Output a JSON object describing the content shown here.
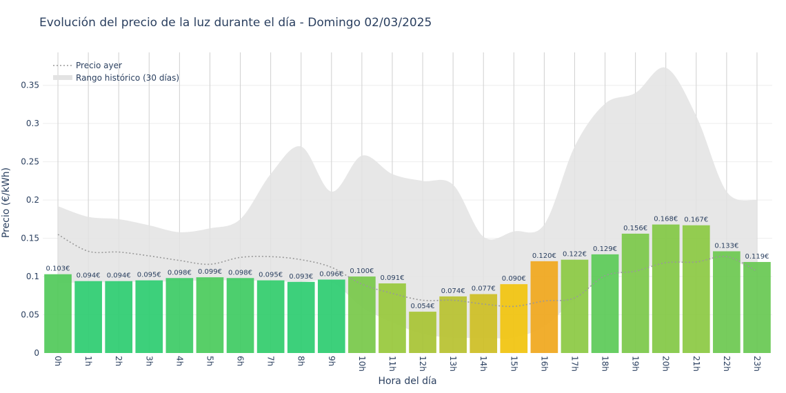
{
  "chart_data": {
    "type": "bar",
    "title": "Evolución del precio de la luz durante el día - Domingo 02/03/2025",
    "xlabel": "Hora del día",
    "ylabel": "Precio (€/kWh)",
    "ylim": [
      0,
      0.393
    ],
    "yticks": [
      0,
      0.05,
      0.1,
      0.15,
      0.2,
      0.25,
      0.3,
      0.35
    ],
    "ytick_labels": [
      "0",
      "0.05",
      "0.1",
      "0.15",
      "0.2",
      "0.25",
      "0.3",
      "0.35"
    ],
    "grid": true,
    "legend_position": "top-left",
    "categories": [
      "0h",
      "1h",
      "2h",
      "3h",
      "4h",
      "5h",
      "6h",
      "7h",
      "8h",
      "9h",
      "10h",
      "11h",
      "12h",
      "13h",
      "14h",
      "15h",
      "16h",
      "17h",
      "18h",
      "19h",
      "20h",
      "21h",
      "22h",
      "23h"
    ],
    "values": [
      0.103,
      0.094,
      0.094,
      0.095,
      0.098,
      0.099,
      0.098,
      0.095,
      0.093,
      0.096,
      0.1,
      0.091,
      0.054,
      0.074,
      0.077,
      0.09,
      0.12,
      0.122,
      0.129,
      0.156,
      0.168,
      0.167,
      0.133,
      0.119
    ],
    "value_labels": [
      "0.103€",
      "0.094€",
      "0.094€",
      "0.095€",
      "0.098€",
      "0.099€",
      "0.098€",
      "0.095€",
      "0.093€",
      "0.096€",
      "0.100€",
      "0.091€",
      "0.054€",
      "0.074€",
      "0.077€",
      "0.090€",
      "0.120€",
      "0.122€",
      "0.129€",
      "0.156€",
      "0.168€",
      "0.167€",
      "0.133€",
      "0.119€"
    ],
    "bar_colors": [
      "#52c95a",
      "#2ecc71",
      "#2ecc71",
      "#2ecc71",
      "#3dcb66",
      "#4bcb5c",
      "#40cb63",
      "#33cc6d",
      "#2ecc71",
      "#2ecc71",
      "#78c84a",
      "#98c83c",
      "#a8c435",
      "#b8c230",
      "#cdbe25",
      "#f1c40f",
      "#f0a81e",
      "#8cc944",
      "#5cca58",
      "#7cc84a",
      "#83c846",
      "#8cc944",
      "#6dc851",
      "#68c853"
    ],
    "series": [
      {
        "name": "Precio ayer",
        "style": "dotted-line",
        "color": "#999999",
        "values": [
          0.155,
          0.133,
          0.132,
          0.127,
          0.121,
          0.116,
          0.125,
          0.126,
          0.122,
          0.112,
          0.09,
          0.078,
          0.069,
          0.069,
          0.064,
          0.061,
          0.068,
          0.072,
          0.101,
          0.107,
          0.118,
          0.119,
          0.126,
          0.107
        ]
      },
      {
        "name": "Rango histórico (30 días)",
        "style": "band",
        "color": "#e3e3e3",
        "upper": [
          0.192,
          0.178,
          0.175,
          0.167,
          0.158,
          0.163,
          0.175,
          0.234,
          0.27,
          0.211,
          0.258,
          0.234,
          0.225,
          0.22,
          0.152,
          0.159,
          0.168,
          0.27,
          0.326,
          0.34,
          0.373,
          0.31,
          0.211,
          0.2
        ],
        "lower": [
          0.092,
          0.092,
          0.093,
          0.093,
          0.094,
          0.095,
          0.095,
          0.094,
          0.093,
          0.093,
          0.06,
          0.04,
          0.025,
          0.02,
          0.02,
          0.02,
          0.035,
          0.07,
          0.098,
          0.108,
          0.118,
          0.118,
          0.124,
          0.104
        ]
      }
    ]
  }
}
